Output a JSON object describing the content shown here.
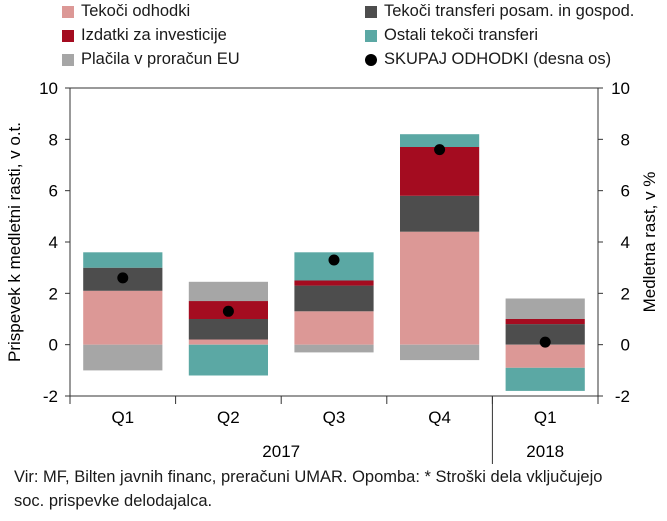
{
  "chart_data": {
    "type": "bar",
    "stacked": true,
    "categories": [
      "Q1",
      "Q2",
      "Q3",
      "Q4",
      "Q1"
    ],
    "year_groups": [
      {
        "label": "2017",
        "span": [
          0,
          3
        ]
      },
      {
        "label": "2018",
        "span": [
          4,
          4
        ]
      }
    ],
    "series": [
      {
        "name": "Tekoči odhodki",
        "color": "#dc9896",
        "values": [
          2.1,
          0.2,
          1.3,
          4.4,
          -0.9
        ]
      },
      {
        "name": "Tekoči transferi posam. in gospod.",
        "color": "#4d4d4d",
        "values": [
          0.9,
          0.8,
          1.0,
          1.4,
          0.8
        ]
      },
      {
        "name": "Izdatki za investicije",
        "color": "#a40c20",
        "values": [
          0.0,
          0.7,
          0.2,
          1.9,
          0.2
        ]
      },
      {
        "name": "Ostali tekoči transferi",
        "color": "#5ba8a4",
        "values": [
          0.6,
          -1.2,
          1.1,
          0.5,
          -0.9
        ]
      },
      {
        "name": "Plačila v proračun EU",
        "color": "#a6a6a6",
        "values": [
          -1.0,
          0.75,
          -0.3,
          -0.6,
          0.8
        ]
      }
    ],
    "total_series": {
      "name": "SKUPAJ ODHODKI (desna os)",
      "color": "#000000",
      "axis": "right",
      "values": [
        2.6,
        1.3,
        3.3,
        7.6,
        0.1
      ]
    },
    "ylabel": "Prispevek k medletni rasti, v o.t.",
    "ylabel_right": "Medletna rast, v %",
    "ylim": [
      -2,
      10
    ],
    "ylim_right": [
      -2,
      10
    ],
    "yticks": [
      -2,
      0,
      2,
      4,
      6,
      8,
      10
    ],
    "grid": false,
    "legend_position": "top"
  },
  "legend": [
    {
      "label": "Tekoči odhodki",
      "color": "#dc9896",
      "marker": "square"
    },
    {
      "label": "Tekoči transferi posam. in gospod.",
      "color": "#4d4d4d",
      "marker": "square"
    },
    {
      "label": "Izdatki za investicije",
      "color": "#a40c20",
      "marker": "square"
    },
    {
      "label": "Ostali tekoči transferi",
      "color": "#5ba8a4",
      "marker": "square"
    },
    {
      "label": "Plačila v proračun EU",
      "color": "#a6a6a6",
      "marker": "square"
    },
    {
      "label": "SKUPAJ ODHODKI (desna os)",
      "color": "#000000",
      "marker": "dot"
    }
  ],
  "source_note": "Vir: MF, Bilten javnih financ, preračuni UMAR. Opomba: * Stroški dela vključujejo soc. prispevke delodajalca."
}
